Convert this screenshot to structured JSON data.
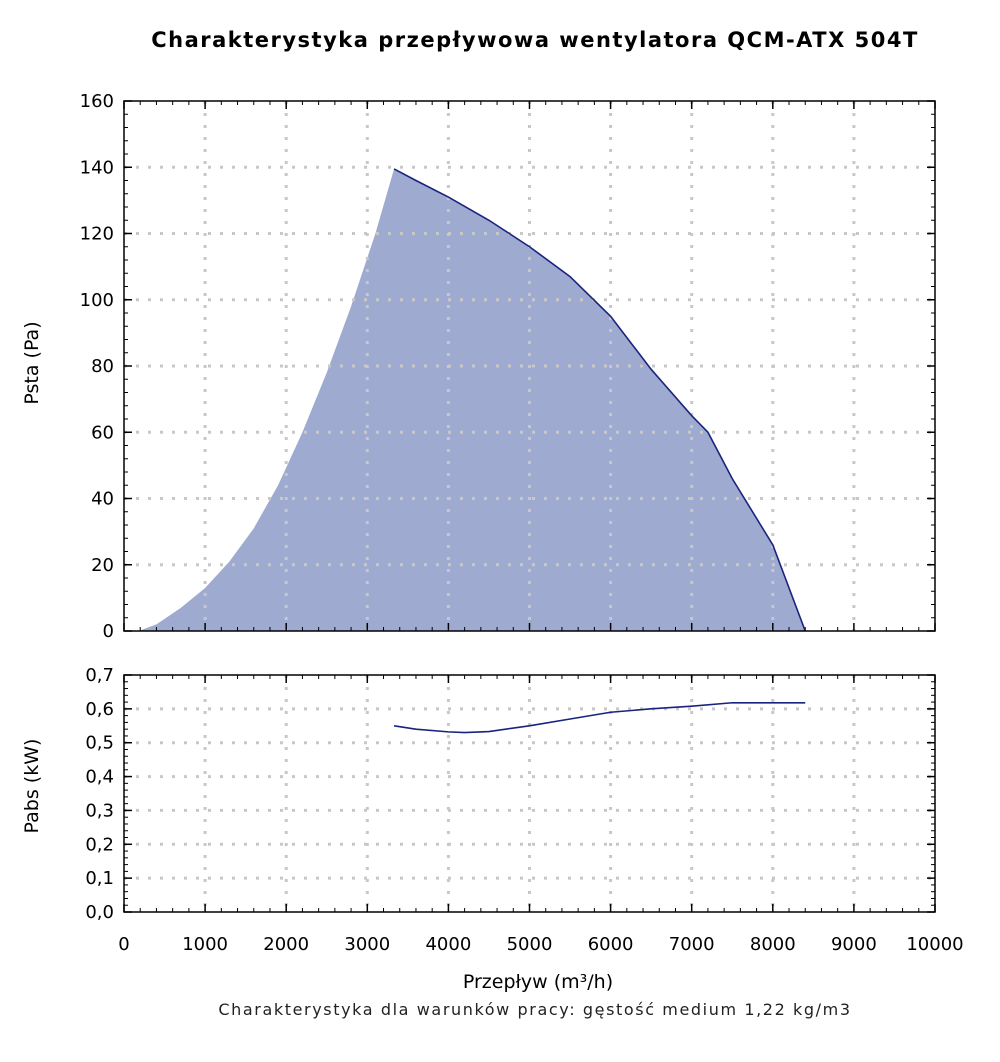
{
  "title": "Charakterystyka przepływowa wentylatora QCM-ATX 504T",
  "footnote": "Charakterystyka dla warunków pracy: gęstość medium 1,22 kg/m3",
  "colors": {
    "area_fill": "#9eaad0",
    "line": "#1a237e",
    "grid": "#c8c8c8",
    "axis": "#000000"
  },
  "chart_data": [
    {
      "type": "area",
      "ylabel": "Psta (Pa)",
      "xlim": [
        0,
        10000
      ],
      "ylim": [
        0,
        160
      ],
      "grid": true,
      "x_ticks": [
        0,
        1000,
        2000,
        3000,
        4000,
        5000,
        6000,
        7000,
        8000,
        9000,
        10000
      ],
      "y_ticks": [
        "0",
        "20",
        "40",
        "60",
        "80",
        "100",
        "120",
        "140",
        "160"
      ],
      "fill_boundary": {
        "x": [
          180,
          400,
          700,
          1000,
          1300,
          1600,
          1900,
          2200,
          2500,
          2800,
          3100,
          3330
        ],
        "y": [
          0,
          2,
          7,
          13,
          21,
          31,
          44,
          60,
          78,
          98,
          120,
          139.5
        ]
      },
      "series": [
        {
          "values": {
            "x": [
              3330,
              3600,
              4000,
              4500,
              5000,
              5500,
              6000,
              6500,
              7000,
              7200,
              7500,
              8000,
              8400
            ],
            "y": [
              139.5,
              136,
              131,
              124,
              116,
              107,
              95,
              79,
              65,
              60,
              46,
              26,
              0
            ]
          }
        }
      ]
    },
    {
      "type": "line",
      "xlabel": "Przepływ (m³/h)",
      "ylabel": "Pabs (kW)",
      "xlim": [
        0,
        10000
      ],
      "ylim": [
        0,
        0.7
      ],
      "grid": true,
      "x_ticks": [
        "0",
        "1000",
        "2000",
        "3000",
        "4000",
        "5000",
        "6000",
        "7000",
        "8000",
        "9000",
        "10000"
      ],
      "y_ticks": [
        "0,0",
        "0,1",
        "0,2",
        "0,3",
        "0,4",
        "0,5",
        "0,6",
        "0,7"
      ],
      "series": [
        {
          "values": {
            "x": [
              3330,
              3600,
              4000,
              4200,
              4500,
              5000,
              5500,
              6000,
              6500,
              7000,
              7500,
              8000,
              8400
            ],
            "y": [
              0.55,
              0.54,
              0.532,
              0.53,
              0.533,
              0.55,
              0.57,
              0.59,
              0.6,
              0.608,
              0.618,
              0.618,
              0.618
            ]
          }
        }
      ]
    }
  ]
}
